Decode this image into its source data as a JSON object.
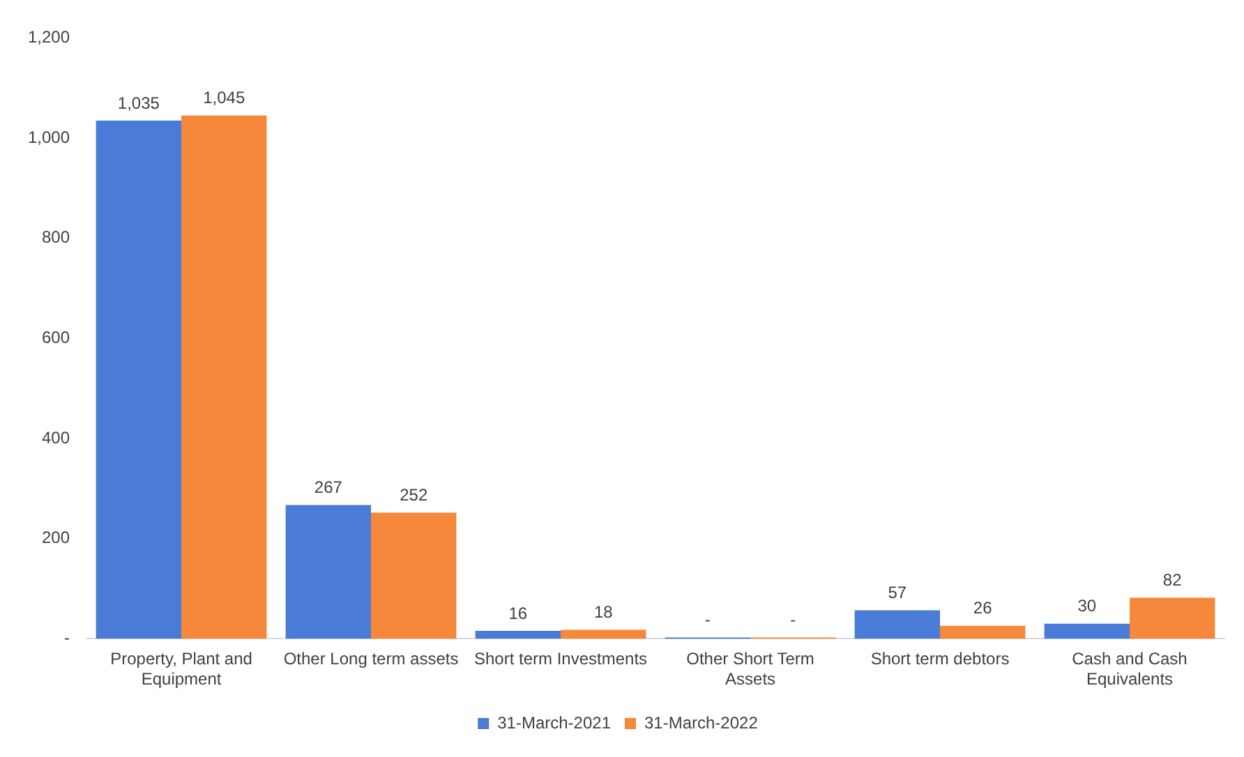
{
  "chart_data": {
    "type": "bar",
    "categories": [
      "Property, Plant and Equipment",
      "Other Long term assets",
      "Short term Investments",
      "Other Short Term Assets",
      "Short term debtors",
      "Cash and Cash Equivalents"
    ],
    "series": [
      {
        "name": "31-March-2021",
        "color": "#4a7bd6",
        "values": [
          1035,
          267,
          16,
          0,
          57,
          30
        ],
        "value_labels": [
          "1,035",
          "267",
          "16",
          "-",
          "57",
          "30"
        ]
      },
      {
        "name": "31-March-2022",
        "color": "#f5883a",
        "values": [
          1045,
          252,
          18,
          0,
          26,
          82
        ],
        "value_labels": [
          "1,045",
          "252",
          "18",
          "-",
          "26",
          "82"
        ]
      }
    ],
    "ylim": [
      0,
      1200
    ],
    "yticks": [
      {
        "value": 0,
        "label": "-"
      },
      200,
      400,
      600,
      800,
      {
        "value": 1000,
        "label": "1,000"
      },
      {
        "value": 1200,
        "label": "1,200"
      }
    ],
    "grid": false,
    "legend": "bottom"
  }
}
